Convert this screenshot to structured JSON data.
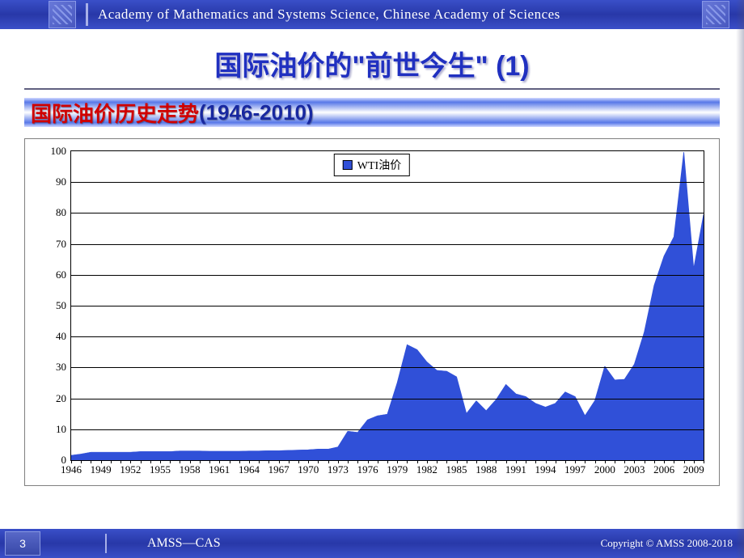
{
  "header": {
    "institution": "Academy of Mathematics and Systems Science, Chinese Academy of Sciences"
  },
  "title": {
    "text_main": "国际油价的\"前世今生\"",
    "text_suffix": "(1)",
    "color_main": "#2030c0",
    "color_suffix": "#2030c0"
  },
  "subtitle": {
    "prefix": "国际油价历史走势 ",
    "range": "(1946-2010)",
    "prefix_color": "#d00000",
    "range_color": "#1828a0"
  },
  "chart": {
    "type": "area",
    "legend_label": "WTI油价",
    "fill_color": "#3050d8",
    "ylim": [
      0,
      100
    ],
    "ytick_step": 10,
    "y_ticks": [
      0,
      10,
      20,
      30,
      40,
      50,
      60,
      70,
      80,
      90,
      100
    ],
    "x_labels": [
      "1946",
      "1949",
      "1952",
      "1955",
      "1958",
      "1961",
      "1964",
      "1967",
      "1970",
      "1973",
      "1976",
      "1979",
      "1982",
      "1985",
      "1988",
      "1991",
      "1994",
      "1997",
      "2000",
      "2003",
      "2006",
      "2009"
    ],
    "x_minor_per_major": 3,
    "series": {
      "years": [
        1946,
        1947,
        1948,
        1949,
        1950,
        1951,
        1952,
        1953,
        1954,
        1955,
        1956,
        1957,
        1958,
        1959,
        1960,
        1961,
        1962,
        1963,
        1964,
        1965,
        1966,
        1967,
        1968,
        1969,
        1970,
        1971,
        1972,
        1973,
        1974,
        1975,
        1976,
        1977,
        1978,
        1979,
        1980,
        1981,
        1982,
        1983,
        1984,
        1985,
        1986,
        1987,
        1988,
        1989,
        1990,
        1991,
        1992,
        1993,
        1994,
        1995,
        1996,
        1997,
        1998,
        1999,
        2000,
        2001,
        2002,
        2003,
        2004,
        2005,
        2006,
        2007,
        2008,
        2009,
        2010
      ],
      "values": [
        1.6,
        2.0,
        2.6,
        2.6,
        2.6,
        2.6,
        2.6,
        2.8,
        2.8,
        2.8,
        2.8,
        3.0,
        3.0,
        3.0,
        2.9,
        2.9,
        2.9,
        2.9,
        3.0,
        3.0,
        3.1,
        3.1,
        3.2,
        3.3,
        3.4,
        3.6,
        3.6,
        4.3,
        9.4,
        9.0,
        13.1,
        14.4,
        14.9,
        25.1,
        37.4,
        35.8,
        31.8,
        29.1,
        28.8,
        27.0,
        15.1,
        19.2,
        16.0,
        19.6,
        24.5,
        21.5,
        20.6,
        18.4,
        17.2,
        18.4,
        22.1,
        20.6,
        14.4,
        19.3,
        30.4,
        26.0,
        26.2,
        31.1,
        41.5,
        56.6,
        66.1,
        72.3,
        99.7,
        62.0,
        79.5
      ]
    }
  },
  "footer": {
    "page": "3",
    "org": "AMSS—CAS",
    "copyright": "Copyright  © AMSS 2008-2018"
  }
}
